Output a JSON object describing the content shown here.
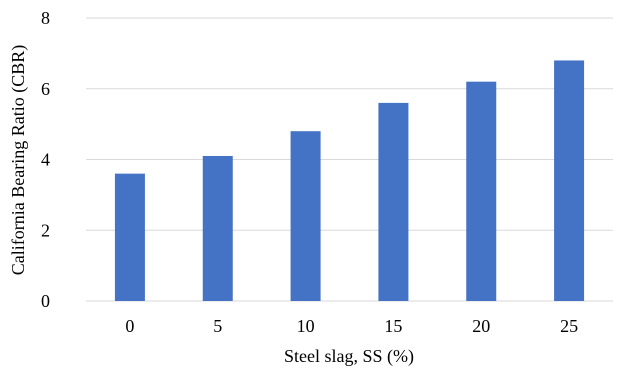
{
  "chart_data": {
    "type": "bar",
    "categories": [
      "0",
      "5",
      "10",
      "15",
      "20",
      "25"
    ],
    "values": [
      3.6,
      4.1,
      4.8,
      5.6,
      6.2,
      6.8
    ],
    "title": "",
    "xlabel": "Steel slag, SS (%)",
    "ylabel": "California Bearing Ratio (CBR)",
    "ylim": [
      0,
      8
    ],
    "yticks": [
      0,
      2,
      4,
      6,
      8
    ],
    "grid": true,
    "legend": "none",
    "bar_color": "#4472c4"
  }
}
